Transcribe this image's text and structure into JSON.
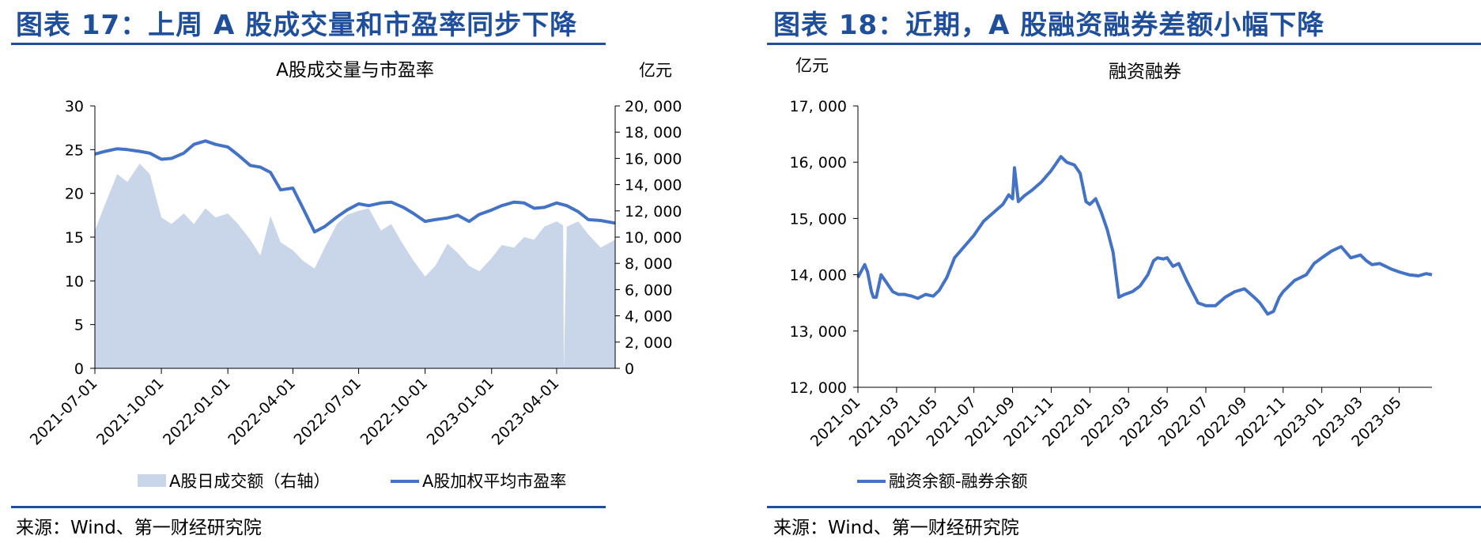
{
  "left": {
    "figure_title": "图表 17：上周 A 股成交量和市盈率同步下降",
    "source": "来源：Wind、第一财经研究院"
  },
  "right": {
    "figure_title": "图表 18：近期，A 股融资融券差额小幅下降",
    "source": "来源：Wind、第一财经研究院"
  },
  "colors": {
    "accent": "#1f4e9a",
    "line": "#4472c4",
    "area": "#c9d6ea"
  },
  "chart_data": [
    {
      "type": "area",
      "title": "A股成交量与市盈率",
      "unit_right": "亿元",
      "x_ticks": [
        "2021-07-01",
        "2021-10-01",
        "2022-01-01",
        "2022-04-01",
        "2022-07-01",
        "2022-10-01",
        "2023-01-01",
        "2023-04-01"
      ],
      "x_range": [
        "2021-07-01",
        "2023-06-21"
      ],
      "y_left": {
        "range": [
          0,
          30
        ],
        "ticks": [
          "0",
          "5",
          "10",
          "15",
          "20",
          "25",
          "30"
        ]
      },
      "y_right": {
        "range": [
          0,
          20000
        ],
        "ticks": [
          "0",
          "2, 000",
          "4, 000",
          "6, 000",
          "8, 000",
          "10, 000",
          "12, 000",
          "14, 000",
          "16, 000",
          "18, 000",
          "20, 000"
        ]
      },
      "legend_position": "bottom",
      "series": [
        {
          "name": "A股日成交额（右轴）",
          "kind": "area",
          "axis": "right",
          "x": [
            "2021-07-01",
            "2021-07-15",
            "2021-08-01",
            "2021-08-15",
            "2021-09-01",
            "2021-09-15",
            "2021-10-01",
            "2021-10-15",
            "2021-11-01",
            "2021-11-15",
            "2021-12-01",
            "2021-12-15",
            "2022-01-01",
            "2022-01-15",
            "2022-02-01",
            "2022-02-15",
            "2022-03-01",
            "2022-03-15",
            "2022-04-01",
            "2022-04-15",
            "2022-05-01",
            "2022-05-15",
            "2022-06-01",
            "2022-06-15",
            "2022-07-01",
            "2022-07-15",
            "2022-08-01",
            "2022-08-15",
            "2022-09-01",
            "2022-09-15",
            "2022-10-01",
            "2022-10-15",
            "2022-11-01",
            "2022-11-15",
            "2022-12-01",
            "2022-12-15",
            "2023-01-01",
            "2023-01-15",
            "2023-02-01",
            "2023-02-15",
            "2023-03-01",
            "2023-03-15",
            "2023-04-01",
            "2023-04-10",
            "2023-04-11",
            "2023-04-15",
            "2023-05-01",
            "2023-05-15",
            "2023-06-01",
            "2023-06-21"
          ],
          "values": [
            10500,
            12500,
            14800,
            14200,
            15600,
            14800,
            11500,
            11000,
            11800,
            11000,
            12200,
            11500,
            11800,
            11000,
            9800,
            8600,
            11600,
            9600,
            9000,
            8200,
            7600,
            9200,
            11000,
            11700,
            12000,
            12200,
            10500,
            11000,
            9400,
            8200,
            7000,
            7800,
            9500,
            8800,
            7800,
            7400,
            8400,
            9400,
            9200,
            10000,
            9800,
            10800,
            11200,
            10900,
            0,
            10800,
            11200,
            10200,
            9200,
            9800
          ]
        },
        {
          "name": "A股加权平均市盈率",
          "kind": "line",
          "axis": "left",
          "x": [
            "2021-07-01",
            "2021-07-15",
            "2021-08-01",
            "2021-08-15",
            "2021-09-01",
            "2021-09-15",
            "2021-10-01",
            "2021-10-15",
            "2021-11-01",
            "2021-11-15",
            "2021-12-01",
            "2021-12-15",
            "2022-01-01",
            "2022-01-15",
            "2022-02-01",
            "2022-02-15",
            "2022-03-01",
            "2022-03-15",
            "2022-04-01",
            "2022-04-15",
            "2022-05-01",
            "2022-05-15",
            "2022-06-01",
            "2022-06-15",
            "2022-07-01",
            "2022-07-15",
            "2022-08-01",
            "2022-08-15",
            "2022-09-01",
            "2022-09-15",
            "2022-10-01",
            "2022-10-15",
            "2022-11-01",
            "2022-11-15",
            "2022-12-01",
            "2022-12-15",
            "2023-01-01",
            "2023-01-15",
            "2023-02-01",
            "2023-02-15",
            "2023-03-01",
            "2023-03-15",
            "2023-04-01",
            "2023-04-15",
            "2023-05-01",
            "2023-05-15",
            "2023-06-01",
            "2023-06-21"
          ],
          "values": [
            24.5,
            24.8,
            25.1,
            25.0,
            24.8,
            24.6,
            23.9,
            24.0,
            24.6,
            25.6,
            26.0,
            25.6,
            25.3,
            24.4,
            23.2,
            23.0,
            22.4,
            20.4,
            20.6,
            18.3,
            15.6,
            16.2,
            17.3,
            18.1,
            18.8,
            18.6,
            18.9,
            19.0,
            18.4,
            17.7,
            16.8,
            17.0,
            17.2,
            17.5,
            16.8,
            17.6,
            18.1,
            18.6,
            19.0,
            18.9,
            18.3,
            18.4,
            18.9,
            18.6,
            17.9,
            17.0,
            16.9,
            16.6
          ]
        }
      ]
    },
    {
      "type": "line",
      "title": "融资融券",
      "unit_left": "亿元",
      "x_ticks": [
        "2021-01",
        "2021-03",
        "2021-05",
        "2021-07",
        "2021-09",
        "2021-11",
        "2022-01",
        "2022-03",
        "2022-05",
        "2022-07",
        "2022-09",
        "2022-11",
        "2023-01",
        "2023-03",
        "2023-05"
      ],
      "x_range": [
        "2021-01",
        "2023-06"
      ],
      "y_left": {
        "range": [
          12000,
          17000
        ],
        "ticks": [
          "12, 000",
          "13, 000",
          "14, 000",
          "15, 000",
          "16, 000",
          "17, 000"
        ]
      },
      "legend_position": "bottom",
      "series": [
        {
          "name": "融资余额-融券余额",
          "x": [
            0,
            0.15,
            0.35,
            0.5,
            0.7,
            0.8,
            0.95,
            1.2,
            1.5,
            1.8,
            2.1,
            2.4,
            2.8,
            3.1,
            3.5,
            3.9,
            4.2,
            4.6,
            5.0,
            5.5,
            6.0,
            6.5,
            7.0,
            7.5,
            7.8,
            8.0,
            8.1,
            8.3,
            8.6,
            9.0,
            9.5,
            10.0,
            10.5,
            10.8,
            11.2,
            11.5,
            11.8,
            12.0,
            12.3,
            12.6,
            12.9,
            13.2,
            13.5,
            13.8,
            14.2,
            14.6,
            15.0,
            15.3,
            15.5,
            15.8,
            16.0,
            16.3,
            16.6,
            17.0,
            17.3,
            17.6,
            18.0,
            18.5,
            19.0,
            19.5,
            20.0,
            20.5,
            20.8,
            21.0,
            21.2,
            21.5,
            21.8,
            22.0,
            22.3,
            22.6,
            22.9,
            23.2,
            23.4,
            23.6,
            24.0,
            24.5,
            25.0,
            25.5,
            26.0,
            26.3,
            26.6,
            27.0,
            27.3,
            27.6,
            28.0,
            28.5,
            29.0,
            29.4,
            29.7
          ],
          "values": [
            13950,
            14050,
            14180,
            14050,
            13700,
            13600,
            13600,
            14000,
            13850,
            13700,
            13650,
            13650,
            13620,
            13580,
            13650,
            13620,
            13720,
            13950,
            14300,
            14500,
            14700,
            14950,
            15100,
            15250,
            15420,
            15350,
            15900,
            15300,
            15400,
            15500,
            15650,
            15850,
            16100,
            16000,
            15950,
            15800,
            15300,
            15250,
            15350,
            15100,
            14800,
            14400,
            13600,
            13650,
            13700,
            13800,
            14000,
            14250,
            14300,
            14280,
            14300,
            14150,
            14200,
            13900,
            13700,
            13500,
            13450,
            13450,
            13600,
            13700,
            13750,
            13600,
            13500,
            13400,
            13300,
            13350,
            13600,
            13700,
            13800,
            13900,
            13950,
            14000,
            14100,
            14200,
            14300,
            14420,
            14500,
            14300,
            14350,
            14250,
            14180,
            14200,
            14150,
            14100,
            14050,
            14000,
            13980,
            14020,
            14000
          ]
        }
      ]
    }
  ]
}
